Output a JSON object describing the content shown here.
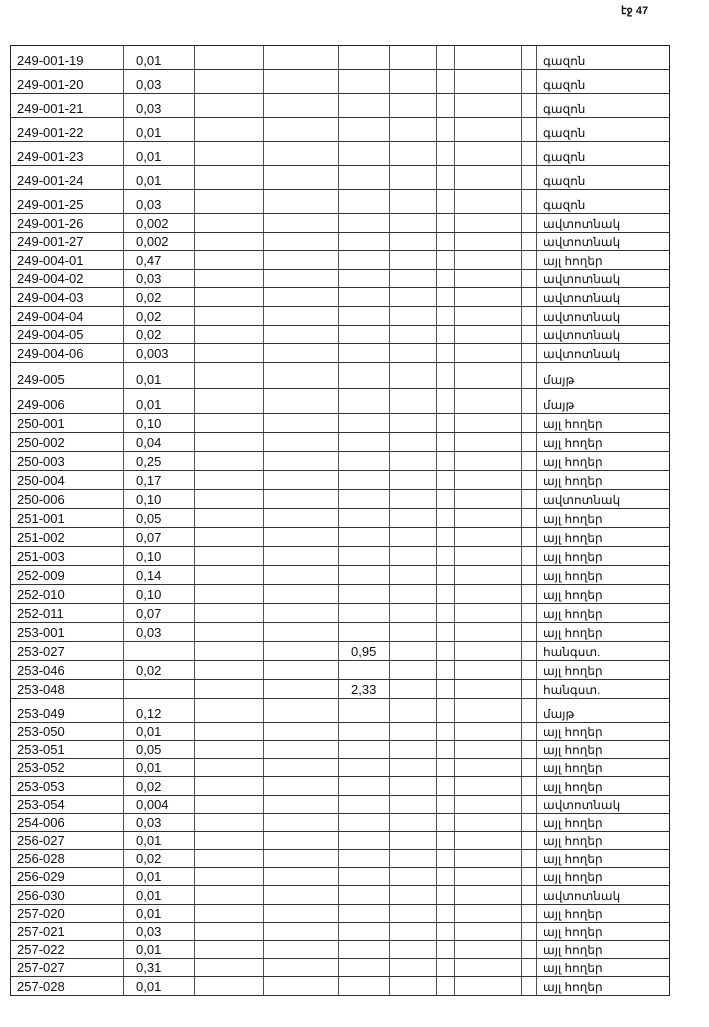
{
  "page_number": "էջ 47",
  "rows": [
    [
      "249-001-19",
      "0,01",
      "",
      "գազոն"
    ],
    [
      "249-001-20",
      "0,03",
      "",
      "գազոն"
    ],
    [
      "249-001-21",
      "0,03",
      "",
      "գազոն"
    ],
    [
      "249-001-22",
      "0,01",
      "",
      "գազոն"
    ],
    [
      "249-001-23",
      "0,01",
      "",
      "գազոն"
    ],
    [
      "249-001-24",
      "0,01",
      "",
      "գազոն"
    ],
    [
      "249-001-25",
      "0,03",
      "",
      "գազոն"
    ],
    [
      "249-001-26",
      "0,002",
      "",
      "ավտոտնակ"
    ],
    [
      "249-001-27",
      "0,002",
      "",
      "ավտոտնակ"
    ],
    [
      "249-004-01",
      "0,47",
      "",
      "այլ հողեր"
    ],
    [
      "249-004-02",
      "0,03",
      "",
      "ավտոտնակ"
    ],
    [
      "249-004-03",
      "0,02",
      "",
      "ավտոտնակ"
    ],
    [
      "249-004-04",
      "0,02",
      "",
      "ավտոտնակ"
    ],
    [
      "249-004-05",
      "0,02",
      "",
      "ավտոտնակ"
    ],
    [
      "249-004-06",
      "0,003",
      "",
      "ավտոտնակ"
    ],
    [
      "249-005",
      "0,01",
      "",
      "մայթ"
    ],
    [
      "249-006",
      "0,01",
      "",
      "մայթ"
    ],
    [
      "250-001",
      "0,10",
      "",
      "այլ հողեր"
    ],
    [
      "250-002",
      "0,04",
      "",
      "այլ հողեր"
    ],
    [
      "250-003",
      "0,25",
      "",
      "այլ հողեր"
    ],
    [
      "250-004",
      "0,17",
      "",
      "այլ հողեր"
    ],
    [
      "250-006",
      "0,10",
      "",
      "ավտոտնակ"
    ],
    [
      "251-001",
      "0,05",
      "",
      "այլ հողեր"
    ],
    [
      "251-002",
      "0,07",
      "",
      "այլ հողեր"
    ],
    [
      "251-003",
      "0,10",
      "",
      "այլ հողեր"
    ],
    [
      "252-009",
      "0,14",
      "",
      "այլ հողեր"
    ],
    [
      "252-010",
      "0,10",
      "",
      "այլ հողեր"
    ],
    [
      "252-011",
      "0,07",
      "",
      "այլ հողեր"
    ],
    [
      "253-001",
      "0,03",
      "",
      "այլ հողեր"
    ],
    [
      "253-027",
      "",
      "0,95",
      "հանգստ."
    ],
    [
      "253-046",
      "0,02",
      "",
      "այլ հողեր"
    ],
    [
      "253-048",
      "",
      "2,33",
      "հանգստ."
    ],
    [
      "253-049",
      "0,12",
      "",
      "մայթ"
    ],
    [
      "253-050",
      "0,01",
      "",
      "այլ հողեր"
    ],
    [
      "253-051",
      "0,05",
      "",
      "այլ հողեր"
    ],
    [
      "253-052",
      "0,01",
      "",
      "այլ հողեր"
    ],
    [
      "253-053",
      "0,02",
      "",
      "այլ հողեր"
    ],
    [
      "253-054",
      "0,004",
      "",
      "ավտոտնակ"
    ],
    [
      "254-006",
      "0,03",
      "",
      "այլ հողեր"
    ],
    [
      "256-027",
      "0,01",
      "",
      "այլ հողեր"
    ],
    [
      "256-028",
      "0,02",
      "",
      "այլ հողեր"
    ],
    [
      "256-029",
      "0,01",
      "",
      "այլ հողեր"
    ],
    [
      "256-030",
      "0,01",
      "",
      "ավտոտնակ"
    ],
    [
      "257-020",
      "0,01",
      "",
      "այլ հողեր"
    ],
    [
      "257-021",
      "0,03",
      "",
      "այլ հողեր"
    ],
    [
      "257-022",
      "0,01",
      "",
      "այլ հողեր"
    ],
    [
      "257-027",
      "0,31",
      "",
      "այլ հողեր"
    ],
    [
      "257-028",
      "0,01",
      "",
      "այլ հողեր"
    ]
  ]
}
